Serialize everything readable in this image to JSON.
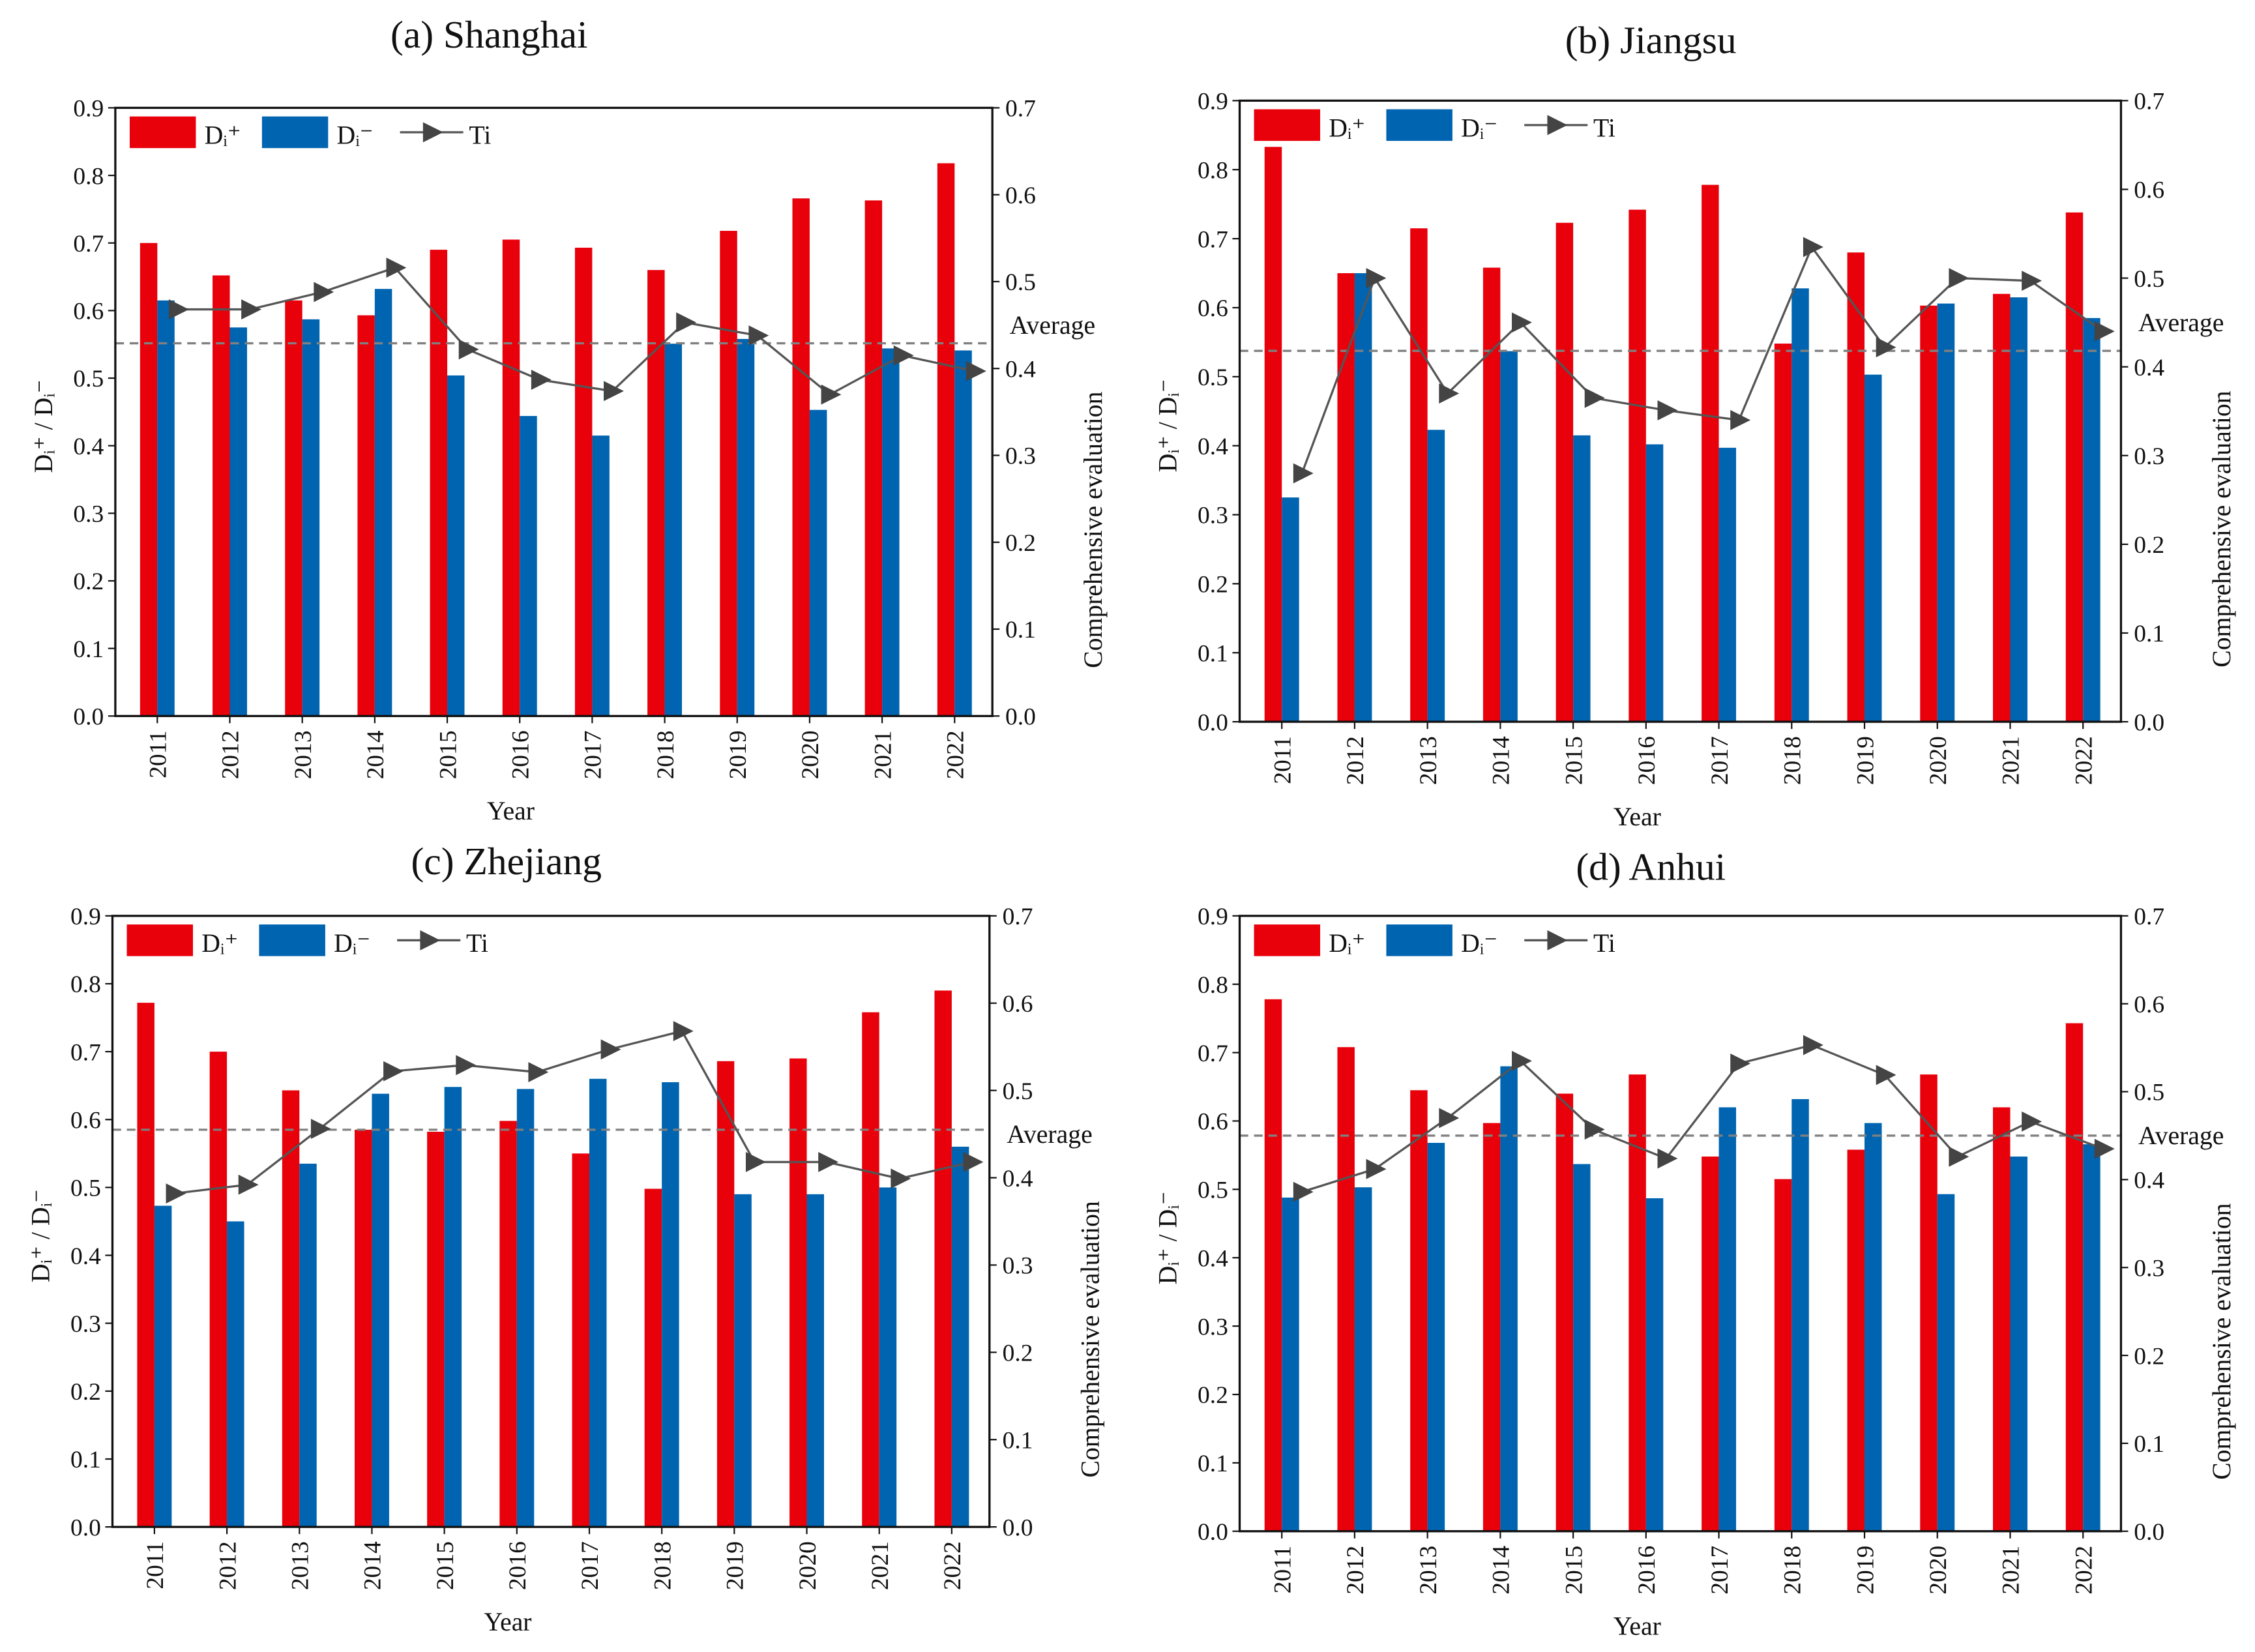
{
  "colors": {
    "d_plus": "#e8000b",
    "d_minus": "#0064b0",
    "ti": "#555555",
    "average": "#808080"
  },
  "chart_data": [
    {
      "type": "bar",
      "title": "(a) Shanghai",
      "xlabel": "Year",
      "ylabel": "Dᵢ⁺ / Dᵢ⁻",
      "y2label": "Comprehensive evaluation",
      "ylim": [
        0,
        0.9
      ],
      "y2lim": [
        0,
        0.7
      ],
      "categories": [
        "2011",
        "2012",
        "2013",
        "2014",
        "2015",
        "2016",
        "2017",
        "2018",
        "2019",
        "2020",
        "2021",
        "2022"
      ],
      "legend": [
        "Dᵢ⁺",
        "Dᵢ⁻",
        "Ti"
      ],
      "legend_position": "top-left",
      "average_label": "Average",
      "average": 0.429,
      "series": [
        {
          "name": "Dᵢ⁺",
          "axis": "left",
          "values": [
            0.7,
            0.652,
            0.615,
            0.593,
            0.69,
            0.705,
            0.693,
            0.66,
            0.718,
            0.766,
            0.763,
            0.818
          ]
        },
        {
          "name": "Dᵢ⁻",
          "axis": "left",
          "values": [
            0.615,
            0.575,
            0.587,
            0.632,
            0.504,
            0.444,
            0.415,
            0.551,
            0.558,
            0.453,
            0.544,
            0.541
          ]
        },
        {
          "name": "Ti",
          "axis": "right",
          "values": [
            0.468,
            0.468,
            0.488,
            0.516,
            0.422,
            0.387,
            0.374,
            0.453,
            0.438,
            0.37,
            0.415,
            0.397
          ]
        }
      ]
    },
    {
      "type": "bar",
      "title": "(b) Jiangsu",
      "xlabel": "Year",
      "ylabel": "Dᵢ⁺ / Dᵢ⁻",
      "y2label": "Comprehensive evaluation",
      "ylim": [
        0,
        0.9
      ],
      "y2lim": [
        0,
        0.7
      ],
      "categories": [
        "2011",
        "2012",
        "2013",
        "2014",
        "2015",
        "2016",
        "2017",
        "2018",
        "2019",
        "2020",
        "2021",
        "2022"
      ],
      "legend": [
        "Dᵢ⁺",
        "Dᵢ⁻",
        "Ti"
      ],
      "legend_position": "top-left",
      "average_label": "Average",
      "average": 0.418,
      "series": [
        {
          "name": "Dᵢ⁺",
          "axis": "left",
          "values": [
            0.833,
            0.65,
            0.715,
            0.658,
            0.723,
            0.742,
            0.778,
            0.548,
            0.68,
            0.603,
            0.62,
            0.738
          ]
        },
        {
          "name": "Dᵢ⁻",
          "axis": "left",
          "values": [
            0.325,
            0.65,
            0.423,
            0.537,
            0.415,
            0.402,
            0.397,
            0.628,
            0.503,
            0.606,
            0.615,
            0.585
          ]
        },
        {
          "name": "Ti",
          "axis": "right",
          "values": [
            0.28,
            0.5,
            0.37,
            0.45,
            0.365,
            0.351,
            0.34,
            0.535,
            0.422,
            0.5,
            0.497,
            0.44
          ]
        }
      ]
    },
    {
      "type": "bar",
      "title": "(c) Zhejiang",
      "xlabel": "Year",
      "ylabel": "Dᵢ⁺ / Dᵢ⁻",
      "y2label": "Comprehensive evaluation",
      "ylim": [
        0,
        0.9
      ],
      "y2lim": [
        0,
        0.7
      ],
      "categories": [
        "2011",
        "2012",
        "2013",
        "2014",
        "2015",
        "2016",
        "2017",
        "2018",
        "2019",
        "2020",
        "2021",
        "2022"
      ],
      "legend": [
        "Dᵢ⁺",
        "Dᵢ⁻",
        "Ti"
      ],
      "legend_position": "top-left",
      "average_label": "Average",
      "average": 0.455,
      "series": [
        {
          "name": "Dᵢ⁺",
          "axis": "left",
          "values": [
            0.772,
            0.7,
            0.643,
            0.585,
            0.582,
            0.598,
            0.55,
            0.498,
            0.686,
            0.69,
            0.758,
            0.79
          ]
        },
        {
          "name": "Dᵢ⁻",
          "axis": "left",
          "values": [
            0.473,
            0.45,
            0.535,
            0.638,
            0.648,
            0.645,
            0.66,
            0.655,
            0.49,
            0.49,
            0.5,
            0.56
          ]
        },
        {
          "name": "Ti",
          "axis": "right",
          "values": [
            0.382,
            0.392,
            0.456,
            0.522,
            0.529,
            0.521,
            0.547,
            0.568,
            0.418,
            0.418,
            0.399,
            0.418
          ]
        }
      ]
    },
    {
      "type": "bar",
      "title": "(d) Anhui",
      "xlabel": "Year",
      "ylabel": "Dᵢ⁺ / Dᵢ⁻",
      "y2label": "Comprehensive evaluation",
      "ylim": [
        0,
        0.9
      ],
      "y2lim": [
        0,
        0.7
      ],
      "categories": [
        "2011",
        "2012",
        "2013",
        "2014",
        "2015",
        "2016",
        "2017",
        "2018",
        "2019",
        "2020",
        "2021",
        "2022"
      ],
      "legend": [
        "Dᵢ⁺",
        "Dᵢ⁻",
        "Ti"
      ],
      "legend_position": "top-left",
      "average_label": "Average",
      "average": 0.45,
      "series": [
        {
          "name": "Dᵢ⁺",
          "axis": "left",
          "values": [
            0.778,
            0.708,
            0.645,
            0.597,
            0.64,
            0.668,
            0.548,
            0.515,
            0.558,
            0.668,
            0.62,
            0.743
          ]
        },
        {
          "name": "Dᵢ⁻",
          "axis": "left",
          "values": [
            0.488,
            0.503,
            0.568,
            0.68,
            0.537,
            0.487,
            0.62,
            0.632,
            0.597,
            0.493,
            0.548,
            0.566
          ]
        },
        {
          "name": "Ti",
          "axis": "right",
          "values": [
            0.386,
            0.412,
            0.47,
            0.535,
            0.457,
            0.424,
            0.532,
            0.553,
            0.519,
            0.426,
            0.466,
            0.435
          ]
        }
      ]
    }
  ],
  "ticks": {
    "left": [
      "0.0",
      "0.1",
      "0.2",
      "0.3",
      "0.4",
      "0.5",
      "0.6",
      "0.7",
      "0.8",
      "0.9"
    ],
    "right": [
      "0.0",
      "0.1",
      "0.2",
      "0.3",
      "0.4",
      "0.5",
      "0.6",
      "0.7"
    ]
  }
}
